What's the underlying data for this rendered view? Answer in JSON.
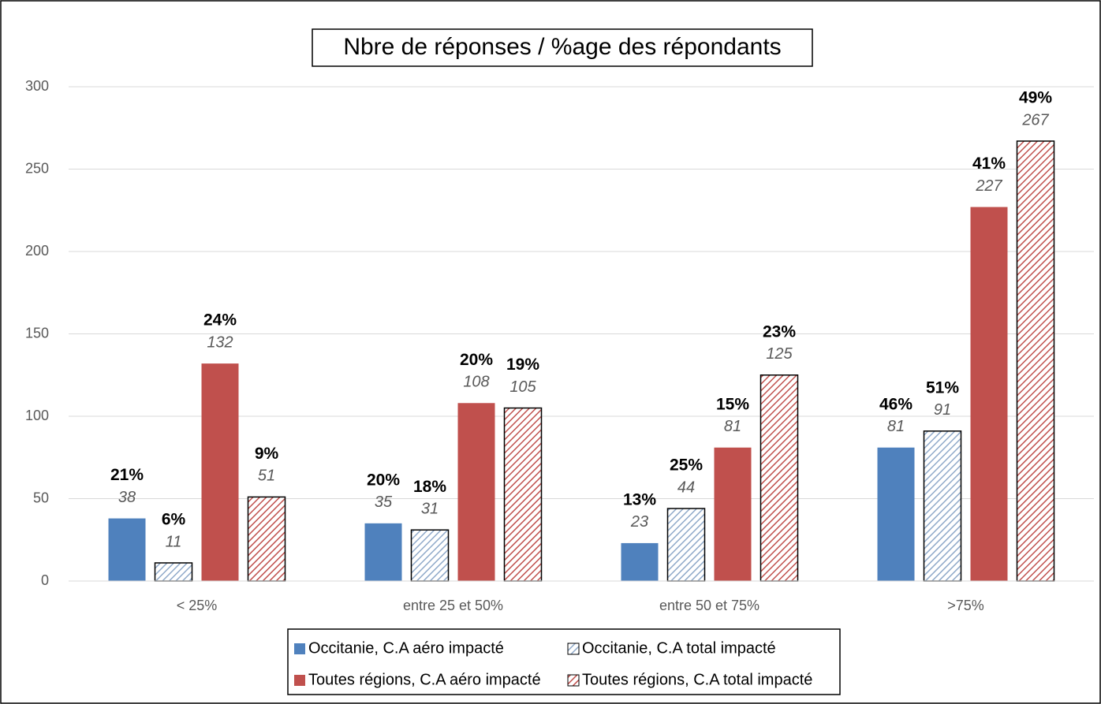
{
  "chart_data": {
    "type": "bar",
    "title": "Nbre de réponses / %age des répondants",
    "categories": [
      "< 25%",
      "entre 25 et 50%",
      "entre 50 et 75%",
      ">75%"
    ],
    "series": [
      {
        "name": "Occitanie, C.A aéro impacté",
        "color": "#4f81bd",
        "hatch": false,
        "values": [
          38,
          35,
          23,
          81
        ],
        "percent_labels": [
          "21%",
          "20%",
          "13%",
          "46%"
        ]
      },
      {
        "name": "Occitanie, C.A total impacté",
        "color": "#8fa9c9",
        "hatch": true,
        "values": [
          11,
          31,
          44,
          91
        ],
        "percent_labels": [
          "6%",
          "18%",
          "25%",
          "51%"
        ]
      },
      {
        "name": "Toutes régions, C.A aéro impacté",
        "color": "#c0504d",
        "hatch": false,
        "values": [
          132,
          108,
          81,
          227
        ],
        "percent_labels": [
          "24%",
          "20%",
          "15%",
          "41%"
        ]
      },
      {
        "name": "Toutes régions, C.A total impacté",
        "color": "#c0504d",
        "hatch": true,
        "values": [
          51,
          105,
          125,
          267
        ],
        "percent_labels": [
          "9%",
          "19%",
          "23%",
          "49%"
        ]
      }
    ],
    "ylim": [
      0,
      300
    ],
    "yticks": [
      0,
      50,
      100,
      150,
      200,
      250,
      300
    ],
    "grid": true
  }
}
